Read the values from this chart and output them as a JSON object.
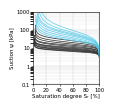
{
  "xlabel": "Saturation degree Sᵣ [%]",
  "ylabel": "Suction ψ [kPa]",
  "xlim": [
    0,
    100
  ],
  "ylim_log": [
    0.1,
    1000
  ],
  "black_curves": [
    {
      "alpha_van": 0.08,
      "n_van": 6.0,
      "Sres": 0.02
    },
    {
      "alpha_van": 0.1,
      "n_van": 7.0,
      "Sres": 0.02
    },
    {
      "alpha_van": 0.06,
      "n_van": 5.5,
      "Sres": 0.03
    },
    {
      "alpha_van": 0.12,
      "n_van": 8.0,
      "Sres": 0.02
    },
    {
      "alpha_van": 0.07,
      "n_van": 6.5,
      "Sres": 0.025
    },
    {
      "alpha_van": 0.09,
      "n_van": 7.5,
      "Sres": 0.02
    },
    {
      "alpha_van": 0.05,
      "n_van": 5.0,
      "Sres": 0.03
    },
    {
      "alpha_van": 0.11,
      "n_van": 7.2,
      "Sres": 0.02
    },
    {
      "alpha_van": 0.14,
      "n_van": 9.0,
      "Sres": 0.015
    },
    {
      "alpha_van": 0.04,
      "n_van": 4.5,
      "Sres": 0.035
    },
    {
      "alpha_van": 0.15,
      "n_van": 8.5,
      "Sres": 0.015
    },
    {
      "alpha_van": 0.13,
      "n_van": 7.8,
      "Sres": 0.02
    }
  ],
  "cyan_curves": [
    {
      "alpha_van": 0.025,
      "n_van": 2.8,
      "Sres": 0.05
    },
    {
      "alpha_van": 0.02,
      "n_van": 2.5,
      "Sres": 0.06
    },
    {
      "alpha_van": 0.03,
      "n_van": 3.0,
      "Sres": 0.05
    },
    {
      "alpha_van": 0.018,
      "n_van": 2.3,
      "Sres": 0.07
    },
    {
      "alpha_van": 0.035,
      "n_van": 3.2,
      "Sres": 0.04
    },
    {
      "alpha_van": 0.015,
      "n_van": 2.1,
      "Sres": 0.08
    },
    {
      "alpha_van": 0.04,
      "n_van": 3.5,
      "Sres": 0.04
    },
    {
      "alpha_van": 0.022,
      "n_van": 2.6,
      "Sres": 0.055
    }
  ],
  "black_color": "#222222",
  "cyan_color": "#55ccee",
  "xticks": [
    0,
    20,
    40,
    60,
    80,
    100
  ],
  "yticks_log": [
    0.1,
    1,
    10,
    100,
    1000
  ],
  "grid_color": "#cccccc",
  "bg_color": "#ffffff",
  "linewidth": 0.55,
  "xlabel_fontsize": 4.0,
  "ylabel_fontsize": 4.0,
  "tick_fontsize": 3.8
}
